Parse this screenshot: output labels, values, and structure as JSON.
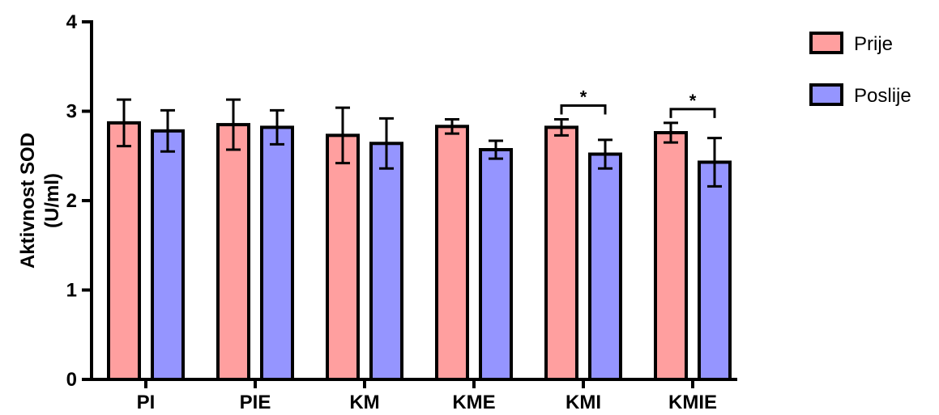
{
  "chart_data": {
    "type": "bar",
    "ylabel_line1": "Aktivnost SOD",
    "ylabel_line2": "(U/ml)",
    "ylim": [
      0,
      4
    ],
    "yticks": [
      0,
      1,
      2,
      3,
      4
    ],
    "categories": [
      "PI",
      "PIE",
      "KM",
      "KME",
      "KMI",
      "KMIE"
    ],
    "series": [
      {
        "name": "Prije",
        "color": "#FF9F9F",
        "values": [
          2.87,
          2.85,
          2.73,
          2.83,
          2.82,
          2.76
        ],
        "errors": [
          0.26,
          0.28,
          0.31,
          0.08,
          0.09,
          0.11
        ]
      },
      {
        "name": "Poslije",
        "color": "#9595FF",
        "values": [
          2.78,
          2.82,
          2.64,
          2.57,
          2.52,
          2.43
        ],
        "errors": [
          0.23,
          0.19,
          0.28,
          0.1,
          0.16,
          0.27
        ]
      }
    ],
    "legend_position": "top-right",
    "significance": [
      {
        "category": "KMI",
        "label": "*"
      },
      {
        "category": "KMIE",
        "label": "*"
      }
    ]
  }
}
